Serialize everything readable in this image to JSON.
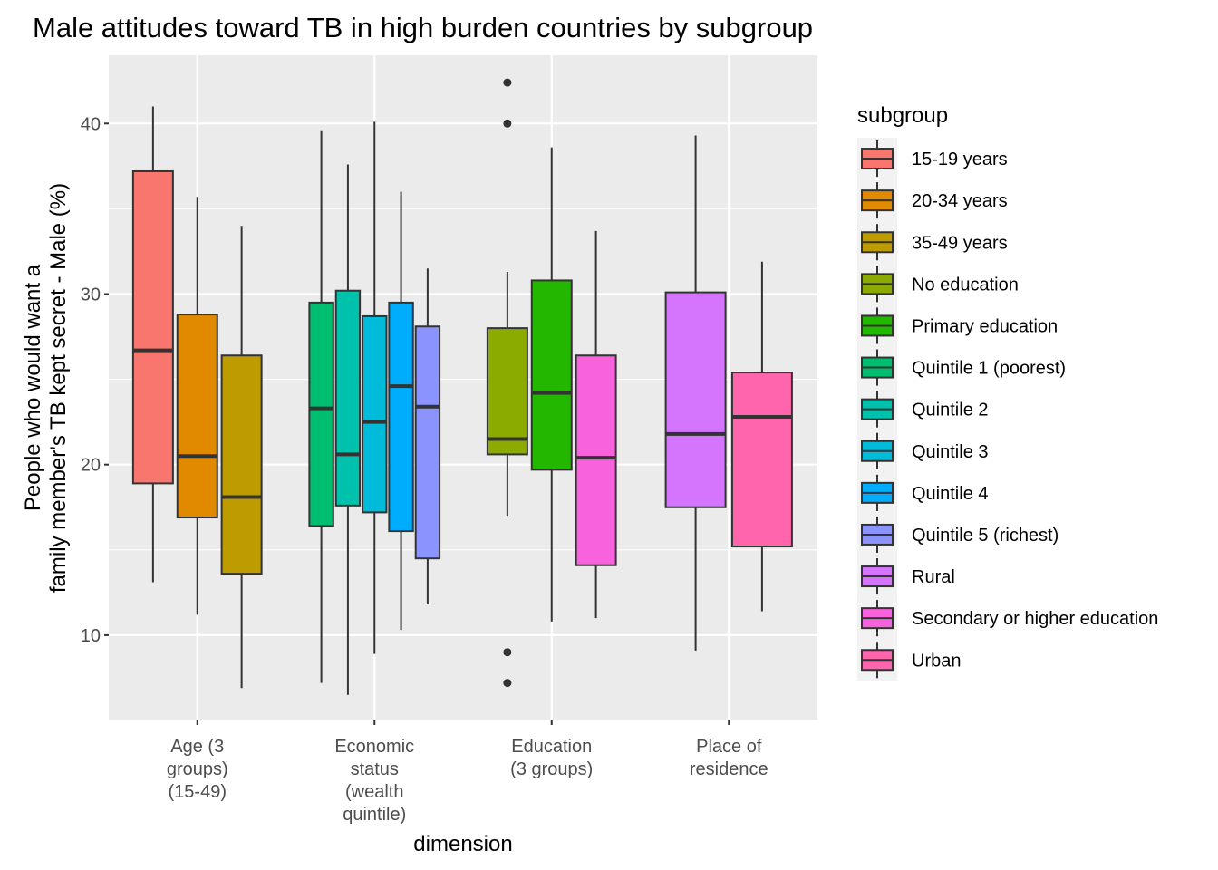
{
  "chart_data": {
    "type": "boxplot",
    "title": "Male attitudes toward TB in high burden countries by subgroup",
    "xlabel": "dimension",
    "ylabel_lines": [
      "People who would want a",
      "family member's TB kept secret - Male (%)"
    ],
    "ylim": [
      5,
      44
    ],
    "y_ticks": [
      10,
      20,
      30,
      40
    ],
    "grid": true,
    "legend_position": "right",
    "legend_title": "subgroup",
    "categories": [
      {
        "label_lines": [
          "Age (3",
          "groups)",
          "(15-49)"
        ]
      },
      {
        "label_lines": [
          "Economic",
          "status",
          "(wealth",
          "quintile)"
        ]
      },
      {
        "label_lines": [
          "Education",
          "(3 groups)"
        ]
      },
      {
        "label_lines": [
          "Place of",
          "residence"
        ]
      }
    ],
    "series": [
      {
        "name": "15-19 years",
        "color": "#F8766D",
        "category": 0,
        "slot": 0,
        "slots": 3,
        "min": 13.1,
        "q1": 18.9,
        "median": 26.7,
        "q3": 37.2,
        "max": 41.0,
        "outliers": []
      },
      {
        "name": "20-34 years",
        "color": "#E18A00",
        "category": 0,
        "slot": 1,
        "slots": 3,
        "min": 11.2,
        "q1": 16.9,
        "median": 20.5,
        "q3": 28.8,
        "max": 35.7,
        "outliers": []
      },
      {
        "name": "35-49 years",
        "color": "#BE9C00",
        "category": 0,
        "slot": 2,
        "slots": 3,
        "min": 6.9,
        "q1": 13.6,
        "median": 18.1,
        "q3": 26.4,
        "max": 34.0,
        "outliers": []
      },
      {
        "name": "No education",
        "color": "#8CAB00",
        "category": 2,
        "slot": 0,
        "slots": 3,
        "min": 17.0,
        "q1": 20.6,
        "median": 21.5,
        "q3": 28.0,
        "max": 31.3,
        "outliers": [
          42.4,
          40.0,
          9.0,
          7.2
        ]
      },
      {
        "name": "Primary education",
        "color": "#24B700",
        "category": 2,
        "slot": 1,
        "slots": 3,
        "min": 10.8,
        "q1": 19.7,
        "median": 24.2,
        "q3": 30.8,
        "max": 38.6,
        "outliers": []
      },
      {
        "name": "Quintile 1 (poorest)",
        "color": "#00BE70",
        "category": 1,
        "slot": 0,
        "slots": 5,
        "min": 7.2,
        "q1": 16.4,
        "median": 23.3,
        "q3": 29.5,
        "max": 39.6,
        "outliers": []
      },
      {
        "name": "Quintile 2",
        "color": "#00C1AB",
        "category": 1,
        "slot": 1,
        "slots": 5,
        "min": 6.5,
        "q1": 17.6,
        "median": 20.6,
        "q3": 30.2,
        "max": 37.6,
        "outliers": []
      },
      {
        "name": "Quintile 3",
        "color": "#00BBDA",
        "category": 1,
        "slot": 2,
        "slots": 5,
        "min": 8.9,
        "q1": 17.2,
        "median": 22.5,
        "q3": 28.7,
        "max": 40.1,
        "outliers": []
      },
      {
        "name": "Quintile 4",
        "color": "#00ACFC",
        "category": 1,
        "slot": 3,
        "slots": 5,
        "min": 10.3,
        "q1": 16.1,
        "median": 24.6,
        "q3": 29.5,
        "max": 36.0,
        "outliers": []
      },
      {
        "name": "Quintile 5 (richest)",
        "color": "#8B93FF",
        "category": 1,
        "slot": 4,
        "slots": 5,
        "min": 11.8,
        "q1": 14.5,
        "median": 23.4,
        "q3": 28.1,
        "max": 31.5,
        "outliers": []
      },
      {
        "name": "Rural",
        "color": "#D575FE",
        "category": 3,
        "slot": 0,
        "slots": 2,
        "min": 9.1,
        "q1": 17.5,
        "median": 21.8,
        "q3": 30.1,
        "max": 39.3,
        "outliers": []
      },
      {
        "name": "Secondary or higher education",
        "color": "#F962DD",
        "category": 2,
        "slot": 2,
        "slots": 3,
        "min": 11.0,
        "q1": 14.1,
        "median": 20.4,
        "q3": 26.4,
        "max": 33.7,
        "outliers": []
      },
      {
        "name": "Urban",
        "color": "#FF65AC",
        "category": 3,
        "slot": 1,
        "slots": 2,
        "min": 11.4,
        "q1": 15.2,
        "median": 22.8,
        "q3": 25.4,
        "max": 31.9,
        "outliers": []
      }
    ]
  }
}
